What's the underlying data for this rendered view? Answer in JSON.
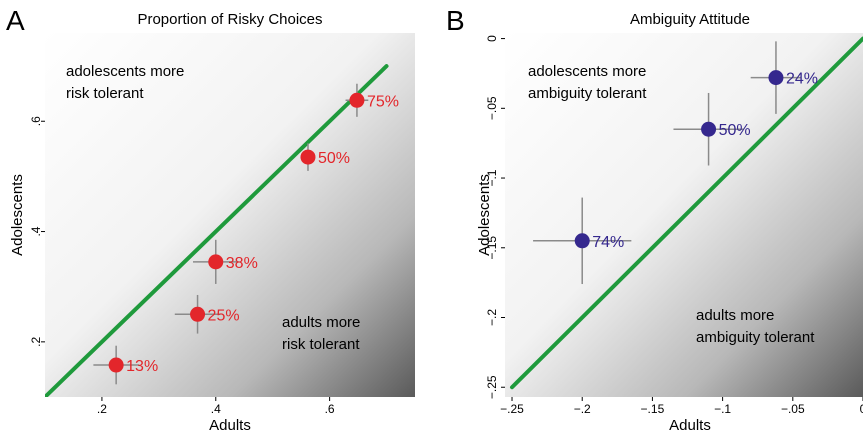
{
  "colors": {
    "panel_a_points": "#e3262b",
    "panel_b_points": "#35288e",
    "diagonal": "#1f9a3c",
    "errorbar": "#8a8a8a",
    "gradient_light": "#ffffff",
    "gradient_dark": "#5a5a5a"
  },
  "chart_data": [
    {
      "panel": "A",
      "type": "scatter",
      "title": "Proportion of Risky Choices",
      "xlabel": "Adults",
      "ylabel": "Adolescents",
      "xlim": [
        0.1,
        0.75
      ],
      "ylim": [
        0.1,
        0.76
      ],
      "xticks": [
        ".2",
        ".4",
        ".6"
      ],
      "yticks": [
        ".2",
        ".4",
        ".6"
      ],
      "xtick_values": [
        0.2,
        0.4,
        0.6
      ],
      "ytick_values": [
        0.2,
        0.4,
        0.6
      ],
      "background": "diagonal gradient, white top-left to dark gray bottom-right",
      "diagonal_line": {
        "from": [
          0.1,
          0.1
        ],
        "to": [
          0.7,
          0.7
        ]
      },
      "annotations": [
        {
          "lines": [
            "adolescents more",
            "risk tolerant"
          ],
          "position": "top-left"
        },
        {
          "lines": [
            "adults more",
            "risk tolerant"
          ],
          "position": "bottom-right"
        }
      ],
      "points": [
        {
          "label": "13%",
          "x": 0.225,
          "y": 0.158,
          "xerr": 0.04,
          "yerr": 0.035
        },
        {
          "label": "25%",
          "x": 0.368,
          "y": 0.25,
          "xerr": 0.04,
          "yerr": 0.035
        },
        {
          "label": "38%",
          "x": 0.4,
          "y": 0.345,
          "xerr": 0.04,
          "yerr": 0.04
        },
        {
          "label": "50%",
          "x": 0.562,
          "y": 0.535,
          "xerr": 0.0,
          "yerr": 0.025
        },
        {
          "label": "75%",
          "x": 0.648,
          "y": 0.638,
          "xerr": 0.02,
          "yerr": 0.03
        }
      ]
    },
    {
      "panel": "B",
      "type": "scatter",
      "title": "Ambiguity Attitude",
      "xlabel": "Adults",
      "ylabel": "Adolescents",
      "xlim": [
        -0.255,
        0.0
      ],
      "ylim": [
        -0.257,
        0.004
      ],
      "xticks": [
        "−.25",
        "−.2",
        "−.15",
        "−.1",
        "−.05",
        "0"
      ],
      "yticks": [
        "−.25",
        "−.2",
        "−.15",
        "−.1",
        "−.05",
        "0"
      ],
      "xtick_values": [
        -0.25,
        -0.2,
        -0.15,
        -0.1,
        -0.05,
        0.0
      ],
      "ytick_values": [
        -0.25,
        -0.2,
        -0.15,
        -0.1,
        -0.05,
        0.0
      ],
      "background": "diagonal gradient, white top-left to dark gray bottom-right",
      "diagonal_line": {
        "from": [
          -0.25,
          -0.25
        ],
        "to": [
          0.0,
          0.0
        ]
      },
      "annotations": [
        {
          "lines": [
            "adolescents more",
            "ambiguity tolerant"
          ],
          "position": "top-left"
        },
        {
          "lines": [
            "adults more",
            "ambiguity tolerant"
          ],
          "position": "bottom-right"
        }
      ],
      "points": [
        {
          "label": "74%",
          "x": -0.2,
          "y": -0.145,
          "xerr": 0.035,
          "yerr": 0.031
        },
        {
          "label": "50%",
          "x": -0.11,
          "y": -0.065,
          "xerr": 0.025,
          "yerr": 0.026
        },
        {
          "label": "24%",
          "x": -0.062,
          "y": -0.028,
          "xerr": 0.018,
          "yerr": 0.026
        }
      ]
    }
  ]
}
